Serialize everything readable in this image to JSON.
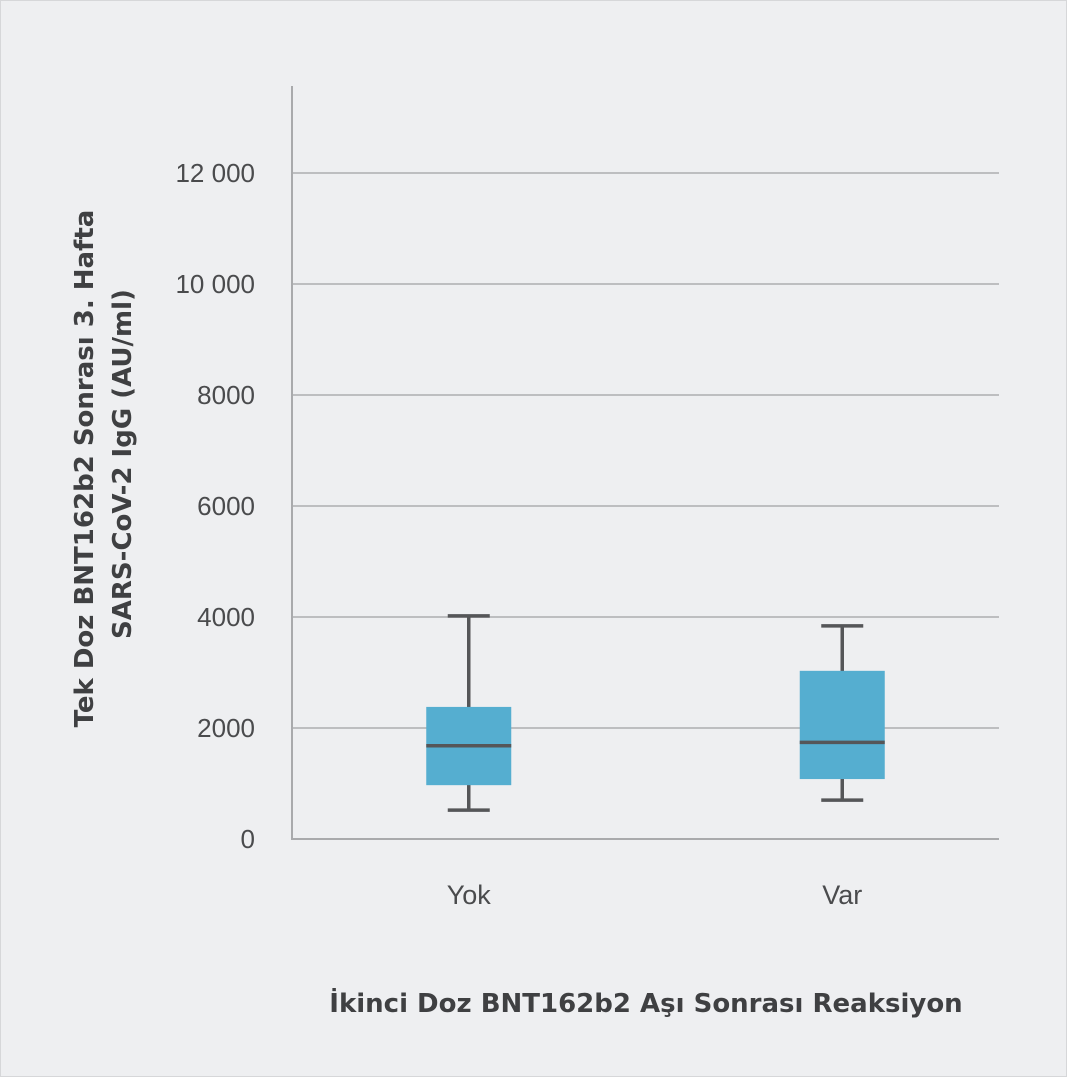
{
  "chart_data": {
    "type": "boxplot",
    "title": "",
    "ylabel_lines": [
      "Tek Doz BNT162b2 Sonrası 3. Hafta",
      "SARS-CoV-2 IgG (AU/ml)"
    ],
    "xlabel": "İkinci Doz BNT162b2 Aşı Sonrası Reaksiyon",
    "ylim": [
      0,
      13500
    ],
    "yticks": [
      0,
      2000,
      4000,
      6000,
      8000,
      10000,
      12000
    ],
    "ytick_labels": [
      "0",
      "2000",
      "4000",
      "6000",
      "8000",
      "10 000",
      "12 000"
    ],
    "grid": true,
    "categories": [
      "Yok",
      "Var"
    ],
    "boxes": [
      {
        "category": "Yok",
        "whisker_low": 520,
        "q1": 970,
        "median": 1680,
        "q3": 2380,
        "whisker_high": 4020
      },
      {
        "category": "Var",
        "whisker_low": 700,
        "q1": 1080,
        "median": 1740,
        "q3": 3030,
        "whisker_high": 3840
      }
    ]
  },
  "colors": {
    "background": "#eeeff1",
    "box_fill": "#55aed0",
    "box_line": "#555658",
    "grid": "#bdbec0",
    "axis": "#a9aaac",
    "text": "#4a4b4d"
  }
}
